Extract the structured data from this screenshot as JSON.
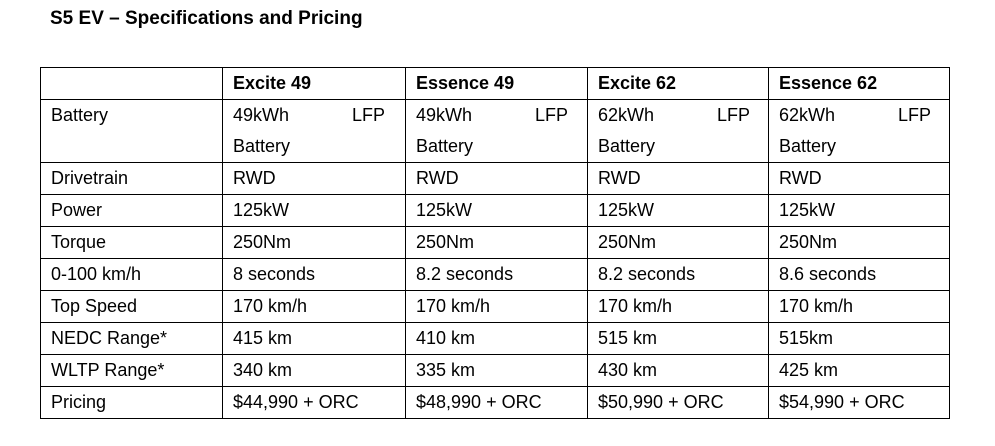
{
  "title": "S5 EV – Specifications and Pricing",
  "table": {
    "columns": [
      "Excite 49",
      "Essence 49",
      "Excite 62",
      "Essence 62"
    ],
    "rows": [
      [
        "Battery",
        "49kWh LFP Battery",
        "49kWh LFP Battery",
        "62kWh LFP Battery",
        "62kWh LFP Battery"
      ],
      [
        "Drivetrain",
        "RWD",
        "RWD",
        "RWD",
        "RWD"
      ],
      [
        "Power",
        "125kW",
        "125kW",
        "125kW",
        "125kW"
      ],
      [
        "Torque",
        "250Nm",
        "250Nm",
        "250Nm",
        "250Nm"
      ],
      [
        "0-100 km/h",
        "8 seconds",
        "8.2 seconds",
        "8.2 seconds",
        "8.6 seconds"
      ],
      [
        "Top Speed",
        "170 km/h",
        "170 km/h",
        "170 km/h",
        "170 km/h"
      ],
      [
        "NEDC Range*",
        "415 km",
        "410 km",
        "515 km",
        "515km"
      ],
      [
        "WLTP Range*",
        "340 km",
        "335 km",
        "430 km",
        "425 km"
      ],
      [
        "Pricing",
        "$44,990 + ORC",
        "$48,990 + ORC",
        "$50,990 + ORC",
        "$54,990 + ORC"
      ]
    ]
  }
}
